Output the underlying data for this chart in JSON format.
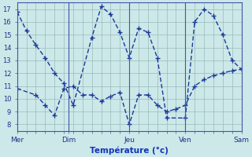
{
  "xlabel": "Température (°c)",
  "background_color": "#cce8e8",
  "line_color": "#1a3a9a",
  "grid_color": "#99bbbb",
  "ylim": [
    7.5,
    17.5
  ],
  "xlim": [
    0,
    24
  ],
  "yticks": [
    8,
    9,
    10,
    11,
    12,
    13,
    14,
    15,
    16,
    17
  ],
  "xtick_positions": [
    0,
    5.5,
    10,
    12,
    18,
    24
  ],
  "xtick_labels": [
    "Mer",
    "Dim",
    "",
    "Jeu",
    "Ven",
    "Sam"
  ],
  "vlines": [
    5.5,
    12,
    18
  ],
  "line1_x": [
    0,
    1,
    2,
    3,
    4,
    5,
    6,
    8,
    9,
    10,
    11,
    12,
    13,
    14,
    15,
    16,
    18,
    19,
    20,
    21,
    22,
    23,
    24
  ],
  "line1_y": [
    16.8,
    15.3,
    14.2,
    13.2,
    12.0,
    11.2,
    9.5,
    14.8,
    17.2,
    16.6,
    15.2,
    13.2,
    15.5,
    15.2,
    13.2,
    8.5,
    8.5,
    16.0,
    17.0,
    16.5,
    15.0,
    13.0,
    12.3
  ],
  "line2_x": [
    0,
    2,
    3,
    4,
    5,
    6,
    7,
    8,
    9,
    10,
    11,
    12,
    13,
    14,
    15,
    16,
    17,
    18,
    19,
    20,
    21,
    22,
    23,
    24
  ],
  "line2_y": [
    10.8,
    10.3,
    9.5,
    8.7,
    10.8,
    11.0,
    10.3,
    10.3,
    9.8,
    10.2,
    10.5,
    8.0,
    10.3,
    10.3,
    9.5,
    9.0,
    9.2,
    9.5,
    11.0,
    11.5,
    11.8,
    12.0,
    12.2,
    12.3
  ]
}
